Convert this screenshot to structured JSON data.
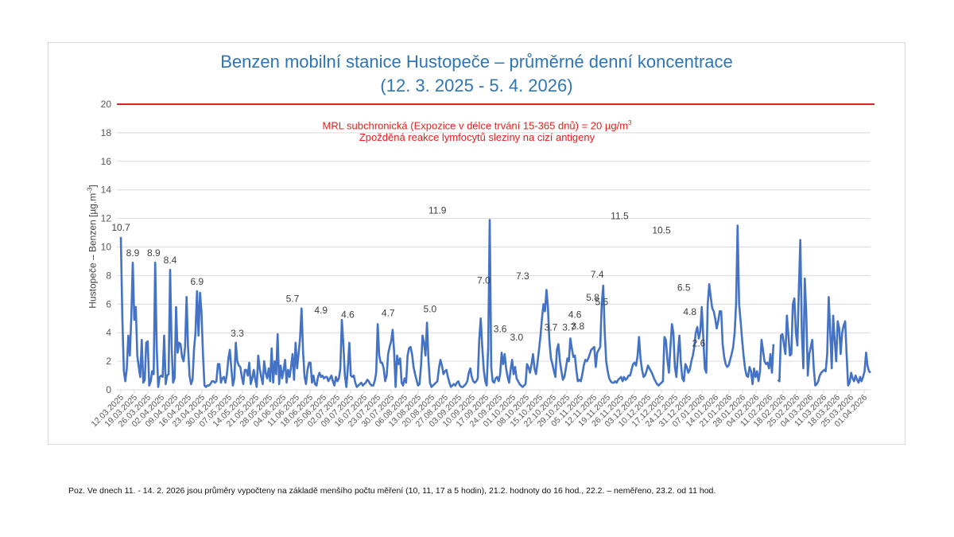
{
  "chart_data": {
    "type": "line",
    "title": "Benzen mobilní stanice Hustopeče – průměrné denní koncentrace",
    "subtitle": "(12. 3. 2025 - 5. 4. 2026)",
    "xlabel": "",
    "ylabel": "Hustopeče – Benzen  [µg.m-3]",
    "ylim": [
      0,
      20
    ],
    "yticks": [
      0,
      2,
      4,
      6,
      8,
      10,
      12,
      14,
      16,
      18,
      20
    ],
    "grid": true,
    "legend": "none",
    "x_start": "12.03.2025",
    "x_end": "05.04.2026",
    "x_tick_labels": [
      "12.03.2025",
      "19.03.2025",
      "26.03.2025",
      "02.04.2025",
      "09.04.2025",
      "16.04.2025",
      "23.04.2025",
      "30.04.2025",
      "07.05.2025",
      "14.05.2025",
      "21.05.2025",
      "28.05.2025",
      "04.06.2025",
      "11.06.2025",
      "18.06.2025",
      "25.06.2025",
      "02.07.2025",
      "09.07.2025",
      "16.07.2025",
      "23.07.2025",
      "30.07.2025",
      "06.08.2025",
      "13.08.2025",
      "20.08.2025",
      "27.08.2025",
      "03.09.2025",
      "10.09.2025",
      "17.09.2025",
      "24.09.2025",
      "01.10.2025",
      "08.10.2025",
      "15.10.2025",
      "22.10.2025",
      "29.10.2025",
      "05.11.2025",
      "12.11.2025",
      "19.11.2025",
      "26.11.2025",
      "03.12.2025",
      "10.12.2025",
      "17.12.2025",
      "24.12.2025",
      "31.12.2025",
      "07.01.2026",
      "14.01.2026",
      "21.01.2026",
      "28.01.2026",
      "04.02.2026",
      "11.02.2026",
      "18.02.2026",
      "25.02.2026",
      "04.03.2026",
      "11.03.2026",
      "18.03.2026",
      "25.03.2026",
      "01.04.2026"
    ],
    "series": [
      {
        "name": "Benzen – denní průměr",
        "color": "#4472c4",
        "values": [
          10.7,
          5.0,
          1.3,
          0.6,
          1.5,
          3.8,
          2.4,
          5.0,
          8.9,
          4.9,
          5.8,
          2.4,
          1.6,
          0.9,
          3.5,
          0.5,
          0.7,
          3.3,
          3.4,
          0.3,
          0.6,
          1.3,
          1.1,
          8.9,
          3.0,
          0.2,
          0.9,
          1.0,
          0.9,
          3.8,
          0.4,
          1.0,
          1.1,
          8.4,
          3.0,
          0.5,
          0.8,
          5.8,
          2.6,
          3.3,
          3.2,
          2.3,
          2.0,
          3.0,
          6.5,
          3.0,
          1.0,
          0.4,
          0.7,
          2.8,
          4.0,
          6.9,
          3.8,
          6.8,
          5.5,
          2.5,
          0.3,
          0.2,
          0.3,
          0.3,
          0.4,
          0.6,
          0.6,
          0.5,
          0.6,
          1.8,
          1.8,
          0.5,
          0.8,
          0.9,
          0.5,
          1.1,
          2.2,
          2.8,
          1.5,
          0.3,
          0.8,
          3.3,
          2.0,
          1.7,
          1.6,
          0.9,
          0.4,
          1.4,
          1.4,
          1.0,
          1.9,
          0.4,
          0.8,
          1.4,
          0.7,
          0.2,
          2.4,
          1.5,
          0.9,
          0.4,
          2.0,
          1.2,
          0.8,
          1.5,
          0.6,
          2.9,
          0.5,
          2.0,
          1.1,
          3.9,
          0.4,
          1.7,
          0.8,
          1.4,
          2.1,
          0.5,
          1.4,
          0.9,
          1.6,
          2.5,
          0.7,
          3.3,
          1.5,
          2.5,
          3.6,
          5.7,
          2.7,
          0.9,
          0.4,
          1.4,
          1.9,
          1.9,
          0.5,
          1.0,
          0.4,
          0.3,
          0.9,
          1.2,
          0.9,
          1.0,
          0.8,
          0.9,
          0.9,
          0.6,
          0.8,
          1.0,
          0.6,
          0.3,
          0.9,
          0.6,
          0.8,
          1.5,
          4.9,
          3.2,
          1.0,
          0.2,
          1.5,
          3.3,
          1.0,
          0.9,
          1.0,
          0.5,
          0.2,
          0.3,
          0.4,
          0.5,
          0.3,
          0.4,
          0.5,
          0.7,
          0.6,
          0.4,
          0.3,
          0.3,
          0.6,
          1.2,
          4.6,
          2.4,
          1.9,
          1.9,
          1.5,
          0.6,
          1.0,
          2.5,
          3.0,
          3.4,
          4.2,
          2.6,
          0.2,
          2.4,
          1.8,
          2.2,
          0.5,
          0.3,
          0.8,
          0.5,
          2.4,
          2.9,
          3.0,
          2.5,
          1.6,
          1.1,
          0.7,
          0.3,
          0.4,
          1.7,
          3.8,
          3.3,
          2.4,
          4.7,
          2.0,
          0.5,
          0.2,
          0.3,
          0.4,
          0.5,
          0.6,
          1.5,
          2.1,
          1.7,
          1.1,
          1.3,
          1.4,
          0.9,
          0.5,
          0.2,
          0.3,
          0.4,
          0.3,
          0.5,
          0.6,
          0.3,
          0.2,
          0.2,
          0.3,
          0.4,
          0.6,
          1.2,
          1.5,
          0.9,
          0.6,
          0.5,
          0.6,
          0.8,
          3.5,
          5.0,
          3.0,
          1.4,
          0.6,
          0.3,
          3.0,
          11.9,
          1.6,
          0.6,
          0.5,
          0.8,
          0.9,
          0.6,
          1.1,
          2.6,
          1.8,
          2.5,
          1.5,
          0.9,
          0.5,
          1.4,
          2.1,
          1.1,
          1.6,
          0.8,
          0.6,
          0.4,
          0.3,
          0.2,
          0.3,
          0.4,
          1.8,
          1.6,
          1.2,
          1.8,
          2.5,
          1.5,
          1.1,
          1.9,
          2.8,
          3.8,
          5.0,
          6.0,
          5.5,
          7.0,
          5.8,
          3.4,
          2.2,
          1.8,
          1.3,
          0.9,
          2.8,
          3.2,
          2.0,
          1.3,
          0.7,
          0.9,
          1.5,
          2.2,
          2.0,
          3.6,
          2.9,
          2.3,
          2.4,
          1.4,
          0.6,
          0.7,
          0.6,
          1.1,
          1.7,
          2.1,
          2.0,
          2.2,
          2.5,
          2.8,
          2.9,
          3.0,
          1.6,
          2.6,
          2.8,
          3.0,
          6.0,
          7.3,
          4.1,
          2.0,
          1.3,
          0.8,
          0.6,
          0.5,
          0.5,
          0.6,
          0.5,
          0.7,
          0.8,
          0.9,
          0.6,
          0.9,
          0.7,
          0.8,
          1.0,
          1.0,
          1.4,
          1.8,
          1.9,
          1.7,
          2.4,
          3.7,
          2.2,
          1.4,
          0.9,
          1.0,
          1.3,
          1.7,
          1.5,
          1.3,
          1.1,
          0.8,
          0.6,
          0.4,
          0.3,
          0.4,
          0.5,
          0.6,
          3.7,
          3.5,
          2.1,
          1.2,
          3.0,
          4.6,
          4.0,
          1.6,
          0.9,
          2.5,
          3.8,
          1.9,
          0.8,
          0.6,
          1.8,
          1.6,
          1.2,
          1.4,
          2.0,
          2.4,
          3.0,
          4.0,
          4.4,
          3.6,
          4.1,
          5.8,
          3.7,
          1.5,
          1.2,
          6.0,
          7.4,
          6.5,
          5.7,
          5.5,
          5.0,
          4.3,
          4.8,
          5.5,
          5.5,
          3.2,
          2.3,
          1.8,
          1.6,
          1.7,
          2.1,
          2.5,
          3.0,
          4.0,
          6.0,
          11.5,
          6.0,
          4.8,
          3.5,
          2.4,
          1.5,
          1.0,
          0.9,
          1.6,
          1.3,
          0.4,
          1.5,
          0.9,
          1.3,
          0.6,
          1.3,
          3.5,
          2.8,
          2.0,
          1.8,
          1.9,
          1.5,
          2.5,
          1.2,
          3.2,
          null,
          null,
          0.7,
          0.6,
          3.8,
          3.9,
          3.2,
          2.5,
          5.2,
          3.8,
          2.4,
          2.5,
          6.0,
          6.4,
          4.0,
          3.1,
          7.0,
          10.5,
          4.0,
          1.5,
          7.8,
          5.3,
          1.0,
          2.5,
          3.0,
          3.5,
          1.5,
          0.3,
          0.4,
          0.6,
          1.0,
          1.2,
          1.3,
          1.4,
          1.3,
          2.5,
          6.5,
          4.1,
          1.5,
          5.2,
          3.5,
          2.0,
          4.8,
          4.3,
          2.5,
          4.0,
          4.5,
          4.8,
          2.5,
          0.3,
          0.5,
          1.2,
          0.8,
          0.6,
          1.0,
          0.7,
          0.5,
          0.9,
          0.6,
          0.9,
          1.3,
          2.6,
          1.7,
          1.3,
          1.2
        ]
      }
    ],
    "data_labels": [
      {
        "date": "12.03.2025",
        "value": 10.7
      },
      {
        "date": "20.03.2025",
        "value": 8.9
      },
      {
        "date": "03.04.2025",
        "value": 8.9
      },
      {
        "date": "14.04.2025",
        "value": 8.4
      },
      {
        "date": "02.05.2025",
        "value": 6.9
      },
      {
        "date": "29.05.2025",
        "value": 3.3
      },
      {
        "date": "05.07.2025",
        "value": 5.7
      },
      {
        "date": "24.07.2025",
        "value": 4.9
      },
      {
        "date": "11.08.2025",
        "value": 4.6
      },
      {
        "date": "07.09.2025",
        "value": 4.7
      },
      {
        "date": "05.10.2025",
        "value": 5.0
      },
      {
        "date": "10.10.2025",
        "value": 11.9
      },
      {
        "date": "10.11.2025",
        "value": 7.0
      },
      {
        "date": "21.11.2025",
        "value": 3.6
      },
      {
        "date": "02.12.2025",
        "value": 3.0
      },
      {
        "date": "06.12.2025",
        "value": 7.3
      },
      {
        "date": "25.12.2025",
        "value": 3.7
      },
      {
        "date": "06.01.2026",
        "value": 3.7
      },
      {
        "date": "10.01.2026",
        "value": 4.6
      },
      {
        "date": "12.01.2026",
        "value": 3.8
      },
      {
        "date": "22.01.2026",
        "value": 5.8
      },
      {
        "date": "25.01.2026",
        "value": 7.4
      },
      {
        "date": "28.01.2026",
        "value": 5.5
      },
      {
        "date": "09.02.2026",
        "value": 11.5
      },
      {
        "date": "09.03.2026",
        "value": 10.5
      },
      {
        "date": "24.03.2026",
        "value": 6.5
      },
      {
        "date": "28.03.2026",
        "value": 4.8
      },
      {
        "date": "03.04.2026",
        "value": 2.6
      }
    ],
    "reference_line": {
      "value": 20,
      "color": "#e0201e",
      "label_line1": "MRL subchronická (Expozice v délce trvání 15-365 dnů) = 20 µg/m³",
      "label_line2": "Zpožděná reakce lymfocytů sleziny na cizí antigeny"
    }
  },
  "header": {
    "title": "Benzen mobilní stanice Hustopeče – průměrné denní koncentrace",
    "subtitle": "(12. 3. 2025 - 5. 4. 2026)"
  },
  "axis": {
    "ylabel_main": "Hustopeče – Benzen  [µg.m",
    "ylabel_sup": "-3",
    "ylabel_end": "]"
  },
  "annotation": {
    "line1": "MRL subchronická (Expozice v délce trvání 15-365 dnů) = 20 µg/m",
    "line1_sup": "3",
    "line2": "Zpožděná reakce lymfocytů sleziny na cizí antigeny"
  },
  "footnote": "Poz. Ve dnech 11. - 14. 2. 2026 jsou průměry vypočteny na základě menšího počtu měření (10, 11, 17 a 5 hodin), 21.2. hodnoty do 16 hod., 22.2. – neměřeno,  23.2. od 11 hod.",
  "colors": {
    "series": "#4472c4",
    "reference": "#e0201e",
    "title": "#2e75b6",
    "grid": "#d9d9d9",
    "axis_text": "#595959"
  }
}
